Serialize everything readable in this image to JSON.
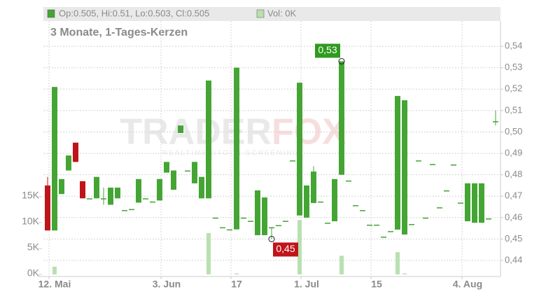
{
  "chart_data": {
    "type": "candlestick",
    "header": {
      "ohlc_label": "Op:0.505, Hi:0.51, Lo:0.503, Cl:0.505",
      "volume_label": "Vol: 0K"
    },
    "subtitle": "3 Monate, 1-Tages-Kerzen",
    "watermark": {
      "left": "TRADER",
      "right": "FOX",
      "tagline": "REALTIME STOCK SCREENING"
    },
    "max_label": "0,53",
    "min_label": "0,45",
    "categories": [
      null,
      "12. Mai",
      null,
      null,
      null,
      null,
      null,
      null,
      null,
      null,
      null,
      null,
      null,
      null,
      null,
      null,
      null,
      "3. Jun",
      null,
      null,
      null,
      null,
      null,
      null,
      null,
      null,
      null,
      "17",
      null,
      null,
      null,
      null,
      null,
      null,
      null,
      null,
      null,
      "1. Jul",
      null,
      null,
      null,
      null,
      null,
      null,
      null,
      null,
      null,
      "15",
      null,
      null,
      null,
      null,
      null,
      null,
      null,
      null,
      null,
      null,
      null,
      null,
      "4. Aug",
      null,
      null,
      null,
      null
    ],
    "open": [
      0.475,
      0.454,
      0.471,
      0.482,
      0.495,
      0.477,
      0.469,
      0.469,
      0.469,
      0.466,
      0.469,
      0.4635,
      0.464,
      0.467,
      0.469,
      0.4675,
      0.468,
      0.481,
      0.473,
      0.4995,
      0.482,
      0.476,
      0.469,
      0.469,
      0.46,
      0.4555,
      0.4545,
      0.4545,
      0.46,
      0.4585,
      0.4518,
      0.4518,
      0.4555,
      0.4565,
      0.4585,
      0.4867,
      0.461,
      0.46,
      0.4668,
      0.4675,
      0.4576,
      0.4583,
      0.48,
      0.4773,
      0.4658,
      0.4635,
      0.4567,
      0.4567,
      0.4511,
      0.4537,
      0.4544,
      0.4521,
      0.457,
      0.4867,
      0.46,
      0.485,
      0.4648,
      0.4727,
      0.4848,
      0.467,
      0.4583,
      0.4576,
      0.4576,
      0.4596,
      0.505
    ],
    "high": [
      0.479,
      0.521,
      0.478,
      0.489,
      0.495,
      0.477,
      0.469,
      0.479,
      0.474,
      0.474,
      0.474,
      0.4635,
      0.464,
      0.478,
      0.469,
      0.4675,
      0.478,
      0.486,
      0.482,
      0.503,
      0.482,
      0.486,
      0.479,
      0.524,
      0.46,
      0.4555,
      0.4545,
      0.53,
      0.46,
      0.4585,
      0.4727,
      0.4694,
      0.4555,
      0.4565,
      0.4585,
      0.4867,
      0.523,
      0.475,
      0.484,
      0.4675,
      0.4576,
      0.478,
      0.533,
      0.4773,
      0.4658,
      0.4635,
      0.4567,
      0.4567,
      0.4511,
      0.4537,
      0.5168,
      0.5148,
      0.457,
      0.4867,
      0.46,
      0.485,
      0.4648,
      0.4727,
      0.4848,
      0.467,
      0.476,
      0.476,
      0.476,
      0.4596,
      0.51
    ],
    "low": [
      0.454,
      0.454,
      0.471,
      0.482,
      0.486,
      0.469,
      0.469,
      0.469,
      0.466,
      0.466,
      0.469,
      0.4635,
      0.464,
      0.467,
      0.469,
      0.4675,
      0.468,
      0.481,
      0.473,
      0.4995,
      0.482,
      0.476,
      0.469,
      0.469,
      0.46,
      0.4555,
      0.4545,
      0.4545,
      0.46,
      0.4585,
      0.4518,
      0.4518,
      0.45,
      0.4565,
      0.4585,
      0.4867,
      0.461,
      0.46,
      0.4668,
      0.4675,
      0.4576,
      0.4583,
      0.48,
      0.4773,
      0.4658,
      0.4635,
      0.4567,
      0.4567,
      0.4511,
      0.4537,
      0.4544,
      0.4521,
      0.457,
      0.4867,
      0.46,
      0.485,
      0.4648,
      0.4727,
      0.4848,
      0.467,
      0.4583,
      0.4576,
      0.4576,
      0.4596,
      0.503
    ],
    "close": [
      0.454,
      0.521,
      0.478,
      0.489,
      0.486,
      0.469,
      0.469,
      0.479,
      0.469,
      0.474,
      0.474,
      0.4635,
      0.464,
      0.478,
      0.469,
      0.4675,
      0.478,
      0.486,
      0.482,
      0.503,
      0.482,
      0.486,
      0.479,
      0.524,
      0.46,
      0.4555,
      0.4545,
      0.53,
      0.46,
      0.4585,
      0.4727,
      0.4694,
      0.4555,
      0.4565,
      0.4585,
      0.4867,
      0.523,
      0.475,
      0.4815,
      0.4675,
      0.4576,
      0.478,
      0.533,
      0.4773,
      0.4658,
      0.4635,
      0.4567,
      0.4567,
      0.4511,
      0.4537,
      0.5168,
      0.5148,
      0.457,
      0.4867,
      0.46,
      0.485,
      0.4648,
      0.4727,
      0.4848,
      0.467,
      0.476,
      0.476,
      0.476,
      0.4596,
      0.505
    ],
    "volume": {
      "axis": "y2",
      "color": "#b9e0b0",
      "values": [
        0,
        1500,
        0,
        0,
        0,
        0,
        0,
        0,
        0,
        0,
        0,
        0,
        0,
        0,
        0,
        0,
        0,
        0,
        0,
        0,
        0,
        0,
        0,
        8000,
        0,
        0,
        0,
        200,
        0,
        0,
        0,
        0,
        0,
        0,
        0,
        0,
        10500,
        0,
        0,
        0,
        0,
        0,
        3600,
        0,
        0,
        0,
        0,
        0,
        0,
        0,
        4300,
        200,
        0,
        0,
        0,
        0,
        0,
        0,
        0,
        0,
        0,
        0,
        0,
        0,
        0
      ]
    },
    "up_color": "#44a534",
    "down_color": "#c0141b",
    "ylim": [
      0.4325,
      0.5518
    ],
    "yticks": [
      {
        "value": 0.44,
        "label": "0,44"
      },
      {
        "value": 0.45,
        "label": "0,45"
      },
      {
        "value": 0.46,
        "label": "0,46"
      },
      {
        "value": 0.47,
        "label": "0,47"
      },
      {
        "value": 0.48,
        "label": "0,48"
      },
      {
        "value": 0.49,
        "label": "0,49"
      },
      {
        "value": 0.5,
        "label": "0,50"
      },
      {
        "value": 0.51,
        "label": "0,51"
      },
      {
        "value": 0.52,
        "label": "0,52"
      },
      {
        "value": 0.53,
        "label": "0,53"
      },
      {
        "value": 0.54,
        "label": "0,54"
      }
    ],
    "y2lim": [
      -400,
      48900
    ],
    "y2ticks": [
      {
        "value": 0,
        "label": "0K"
      },
      {
        "value": 5000,
        "label": "5K"
      },
      {
        "value": 10000,
        "label": "10K"
      },
      {
        "value": 15000,
        "label": "15K"
      }
    ],
    "grid": true
  }
}
